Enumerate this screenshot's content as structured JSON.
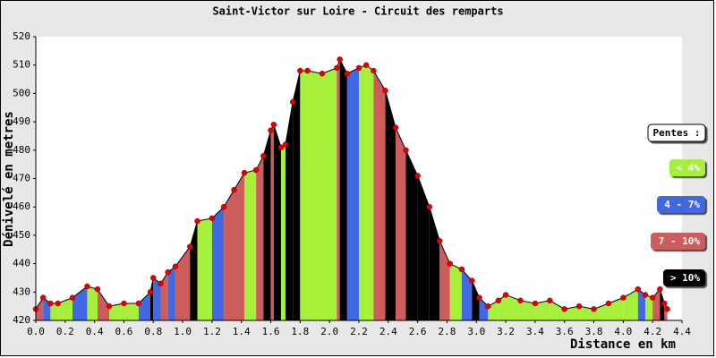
{
  "chart_data": {
    "type": "area",
    "title": "Saint-Victor sur Loire - Circuit des remparts",
    "x_label": "Distance en km",
    "y_label": "Dénivelé en metres",
    "x": [
      0.0,
      0.05,
      0.1,
      0.15,
      0.25,
      0.35,
      0.42,
      0.5,
      0.6,
      0.7,
      0.78,
      0.8,
      0.85,
      0.9,
      0.95,
      1.05,
      1.1,
      1.2,
      1.28,
      1.35,
      1.42,
      1.5,
      1.55,
      1.6,
      1.62,
      1.67,
      1.7,
      1.75,
      1.8,
      1.85,
      1.95,
      2.05,
      2.07,
      2.12,
      2.2,
      2.25,
      2.3,
      2.38,
      2.45,
      2.52,
      2.6,
      2.68,
      2.75,
      2.82,
      2.9,
      2.97,
      3.02,
      3.08,
      3.15,
      3.2,
      3.3,
      3.4,
      3.5,
      3.6,
      3.7,
      3.8,
      3.9,
      4.0,
      4.1,
      4.15,
      4.2,
      4.25,
      4.28,
      4.3
    ],
    "y": [
      424,
      428,
      426,
      426,
      428,
      432,
      431,
      425,
      426,
      426,
      430,
      435,
      433,
      437,
      439,
      446,
      455,
      456,
      460,
      466,
      472,
      473,
      478,
      487,
      489,
      481,
      482,
      497,
      508,
      508,
      507,
      509,
      512,
      507,
      509,
      510,
      508,
      501,
      488,
      480,
      471,
      460,
      448,
      440,
      438,
      434,
      428,
      425,
      427,
      429,
      427,
      426,
      427,
      424,
      425,
      424,
      426,
      428,
      431,
      429,
      428,
      431,
      426,
      424
    ],
    "colors": [
      "#cd5c5c",
      "#cd5c5c",
      "#4169e1",
      "#a6f03c",
      "#a6f03c",
      "#4169e1",
      "#a6f03c",
      "#cd5c5c",
      "#a6f03c",
      "#a6f03c",
      "#4169e1",
      "#000000",
      "#4169e1",
      "#cd5c5c",
      "#4169e1",
      "#cd5c5c",
      "#000000",
      "#a6f03c",
      "#4169e1",
      "#cd5c5c",
      "#cd5c5c",
      "#a6f03c",
      "#cd5c5c",
      "#000000",
      "#cd5c5c",
      "#000000",
      "#a6f03c",
      "#000000",
      "#000000",
      "#a6f03c",
      "#a6f03c",
      "#a6f03c",
      "#cd5c5c",
      "#000000",
      "#4169e1",
      "#a6f03c",
      "#a6f03c",
      "#cd5c5c",
      "#000000",
      "#cd5c5c",
      "#000000",
      "#000000",
      "#000000",
      "#cd5c5c",
      "#a6f03c",
      "#4169e1",
      "#000000",
      "#4169e1",
      "#a6f03c",
      "#a6f03c",
      "#a6f03c",
      "#a6f03c",
      "#a6f03c",
      "#a6f03c",
      "#a6f03c",
      "#a6f03c",
      "#a6f03c",
      "#a6f03c",
      "#a6f03c",
      "#4169e1",
      "#a6f03c",
      "#cd5c5c",
      "#000000",
      "#cd5c5c"
    ],
    "marker_color": "#e00000",
    "xlim": [
      0,
      4.4
    ],
    "ylim": [
      420,
      520
    ],
    "xticks": [
      {
        "value": 0,
        "label": "0.0"
      },
      0.2,
      0.4,
      0.6,
      0.8,
      {
        "value": 1,
        "label": "1.0"
      },
      1.2,
      1.4,
      1.6,
      1.8,
      {
        "value": 2,
        "label": "2.0"
      },
      2.2,
      2.4,
      2.6,
      2.8,
      {
        "value": 3,
        "label": "3.0"
      },
      3.2,
      3.4,
      3.6,
      3.8,
      {
        "value": 4,
        "label": "4.0"
      },
      4.2,
      4.4
    ],
    "yticks": [
      420,
      430,
      440,
      450,
      460,
      470,
      480,
      490,
      500,
      510,
      520
    ],
    "legend": {
      "title": "Pentes :",
      "entries": [
        {
          "name": "< 4%",
          "color": "#a6f03c"
        },
        {
          "name": "4 - 7%",
          "color": "#4169e1"
        },
        {
          "name": "7 - 10%",
          "color": "#cd5c5c"
        },
        {
          "name": "> 10%",
          "color": "#000000"
        }
      ]
    }
  }
}
